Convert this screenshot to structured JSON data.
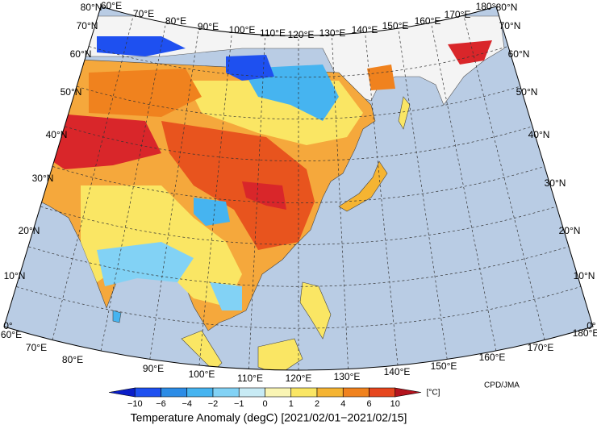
{
  "map": {
    "top_labels": [
      "60°E",
      "70°E",
      "80°E",
      "90°E",
      "100°E",
      "110°E",
      "120°E",
      "130°E",
      "140°E",
      "150°E",
      "160°E",
      "170°E",
      "180°"
    ],
    "bottom_labels": [
      "60°E",
      "70°E",
      "80°E",
      "90°E",
      "100°E",
      "110°E",
      "120°E",
      "130°E",
      "140°E",
      "150°E",
      "160°E",
      "170°E",
      "180°E"
    ],
    "left_labels": [
      "80°N",
      "70°N",
      "60°N",
      "50°N",
      "40°N",
      "30°N",
      "20°N",
      "10°N",
      "0°"
    ],
    "right_labels": [
      "80°N",
      "70°N",
      "60°N",
      "50°N",
      "40°N",
      "30°N",
      "20°N",
      "10°N",
      "0°"
    ]
  },
  "colorbar": {
    "colors": [
      "#0a1ec8",
      "#1e50f0",
      "#2c8ce6",
      "#46b4f0",
      "#82d2f5",
      "#c8ebf5",
      "#faf5b4",
      "#fae664",
      "#f5b432",
      "#f0821e",
      "#e6461e",
      "#b4141e"
    ],
    "labels": [
      "−10",
      "−6",
      "−4",
      "−2",
      "−1",
      "0",
      "1",
      "2",
      "4",
      "6",
      "10"
    ],
    "unit": "[°C]",
    "title": "Temperature Anomaly (degC) [2021/02/01−2021/02/15]"
  },
  "credit": "CPD/JMA"
}
